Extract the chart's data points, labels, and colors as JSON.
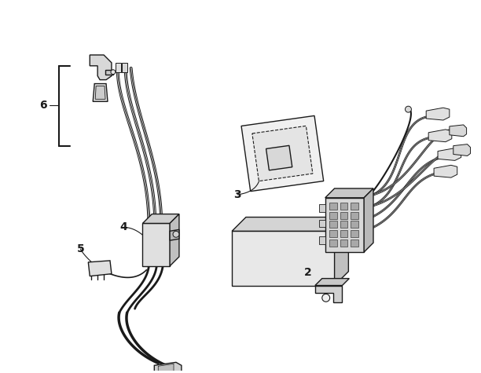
{
  "background_color": "#ffffff",
  "line_color": "#1a1a1a",
  "figure_width": 6.12,
  "figure_height": 4.75,
  "dpi": 100,
  "label_fontsize": 10
}
